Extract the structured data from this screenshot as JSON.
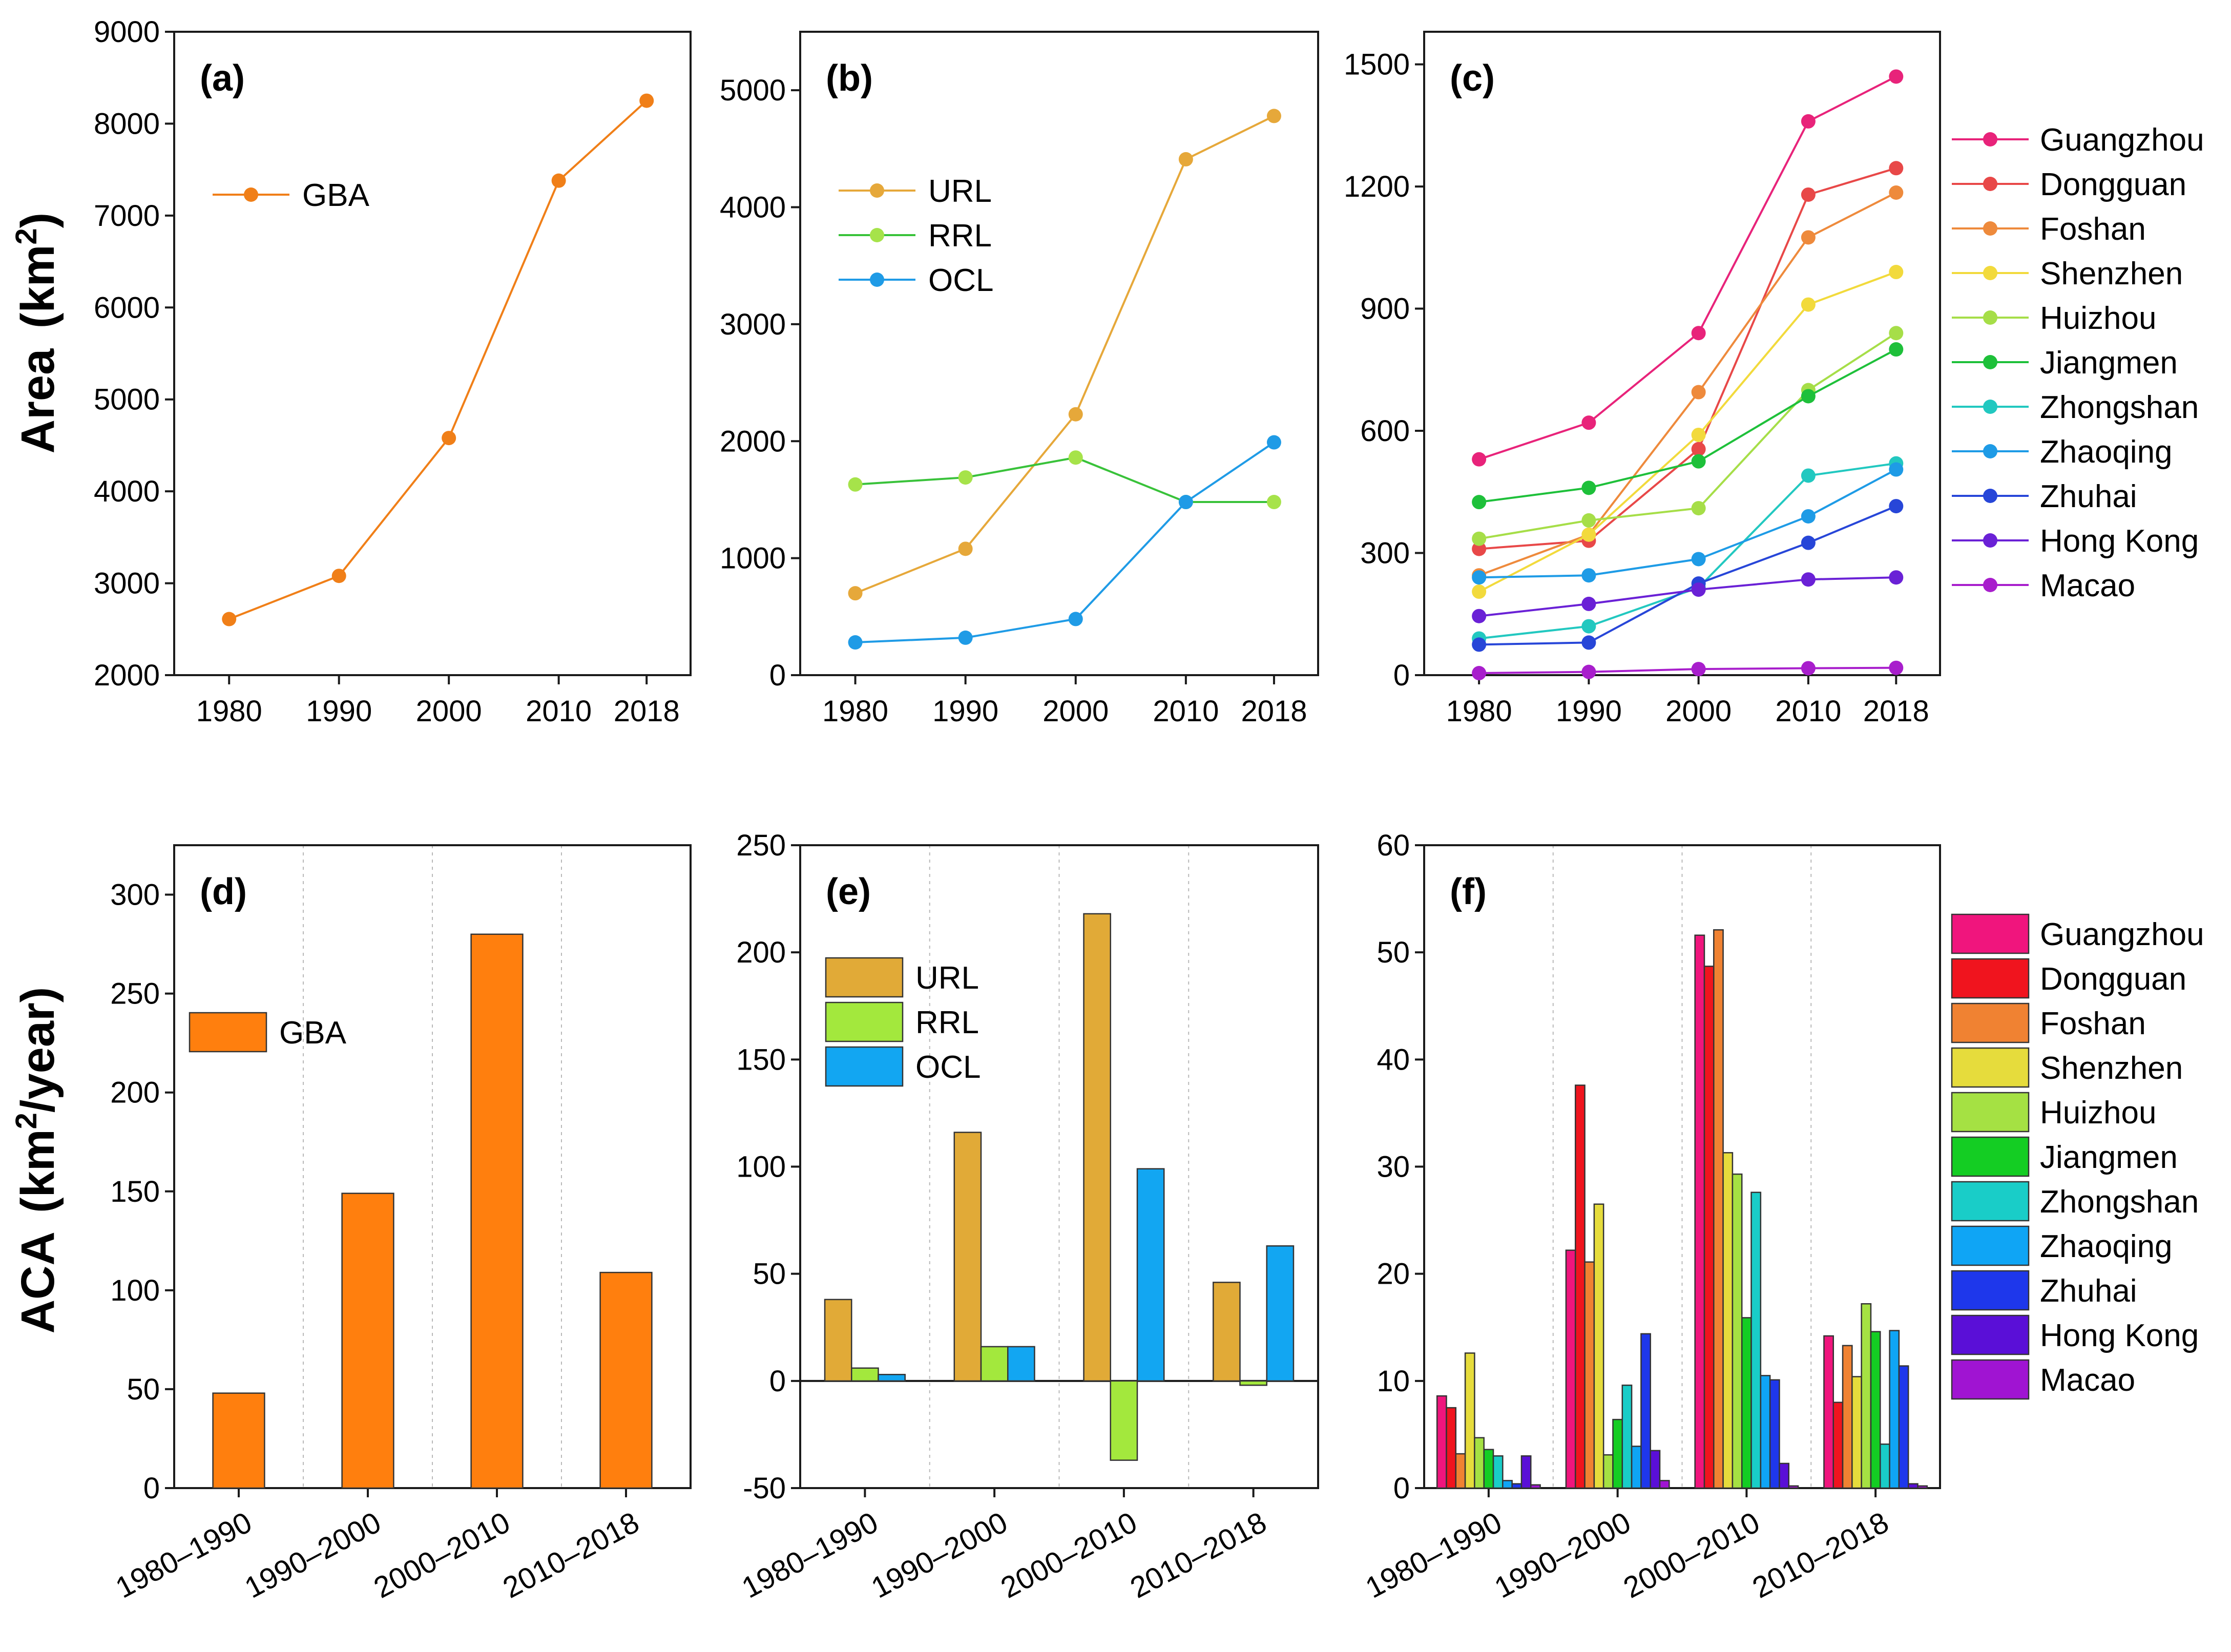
{
  "y_labels": {
    "top": {
      "main": "Area",
      "unit_open": "(km",
      "sup": "2",
      "unit_close": ")"
    },
    "bottom": {
      "main": "ACA",
      "unit_open": "(km",
      "sup": "2",
      "unit_close": "/year)"
    }
  },
  "chart_data": [
    {
      "id": "a",
      "panel_label": "(a)",
      "type": "line",
      "categories": [
        "1980",
        "1990",
        "2000",
        "2010",
        "2018"
      ],
      "x_positions": [
        1980,
        1990,
        2000,
        2010,
        2018
      ],
      "ylim": [
        2000,
        9000
      ],
      "yticks": [
        2000,
        3000,
        4000,
        5000,
        6000,
        7000,
        8000,
        9000
      ],
      "legend": {
        "placement": "upper-left"
      },
      "series": [
        {
          "name": "GBA",
          "color": "#F07F18",
          "values": [
            2610,
            3080,
            4580,
            7380,
            8250
          ]
        }
      ]
    },
    {
      "id": "b",
      "panel_label": "(b)",
      "type": "line",
      "categories": [
        "1980",
        "1990",
        "2000",
        "2010",
        "2018"
      ],
      "x_positions": [
        1980,
        1990,
        2000,
        2010,
        2018
      ],
      "ylim": [
        0,
        5500
      ],
      "yticks": [
        0,
        1000,
        2000,
        3000,
        4000,
        5000
      ],
      "legend": {
        "placement": "upper-left"
      },
      "series": [
        {
          "name": "URL",
          "color": "#E6A83A",
          "values": [
            700,
            1080,
            2230,
            4410,
            4780
          ]
        },
        {
          "name": "RRL",
          "color": "#39C23A",
          "marker_color": "#A6E34A",
          "values": [
            1630,
            1690,
            1860,
            1480,
            1480
          ]
        },
        {
          "name": "OCL",
          "color": "#1F9BE6",
          "values": [
            280,
            320,
            480,
            1480,
            1990
          ]
        }
      ]
    },
    {
      "id": "c",
      "panel_label": "(c)",
      "type": "line",
      "categories": [
        "1980",
        "1990",
        "2000",
        "2010",
        "2018"
      ],
      "x_positions": [
        1980,
        1990,
        2000,
        2010,
        2018
      ],
      "ylim": [
        0,
        1580
      ],
      "yticks": [
        0,
        300,
        600,
        900,
        1200,
        1500
      ],
      "legend": {
        "placement": "outside-right"
      },
      "series": [
        {
          "name": "Guangzhou",
          "color": "#E8237A",
          "values": [
            530,
            620,
            840,
            1360,
            1470
          ]
        },
        {
          "name": "Dongguan",
          "color": "#E84848",
          "values": [
            310,
            330,
            555,
            1180,
            1245
          ]
        },
        {
          "name": "Foshan",
          "color": "#EE8A3C",
          "values": [
            245,
            345,
            695,
            1075,
            1185
          ]
        },
        {
          "name": "Shenzhen",
          "color": "#F2DA3C",
          "values": [
            205,
            345,
            590,
            910,
            990
          ]
        },
        {
          "name": "Huizhou",
          "color": "#A6DE48",
          "values": [
            335,
            380,
            410,
            700,
            840
          ]
        },
        {
          "name": "Jiangmen",
          "color": "#1EC03A",
          "values": [
            425,
            460,
            525,
            685,
            800
          ]
        },
        {
          "name": "Zhongshan",
          "color": "#22C8C0",
          "values": [
            90,
            120,
            215,
            490,
            520
          ]
        },
        {
          "name": "Zhaoqing",
          "color": "#1E9BE6",
          "values": [
            240,
            245,
            285,
            390,
            505
          ]
        },
        {
          "name": "Zhuhai",
          "color": "#2746D8",
          "values": [
            75,
            80,
            225,
            325,
            415
          ]
        },
        {
          "name": "Hong Kong",
          "color": "#6A21D6",
          "values": [
            145,
            175,
            210,
            235,
            240
          ]
        },
        {
          "name": "Macao",
          "color": "#A81ECC",
          "values": [
            5,
            8,
            15,
            17,
            18
          ]
        }
      ]
    },
    {
      "id": "d",
      "panel_label": "(d)",
      "type": "bar",
      "categories": [
        "1980–1990",
        "1990–2000",
        "2000–2010",
        "2010–2018"
      ],
      "ylim": [
        0,
        325
      ],
      "yticks": [
        0,
        50,
        100,
        150,
        200,
        250,
        300
      ],
      "legend": {
        "placement": "upper-left"
      },
      "series": [
        {
          "name": "GBA",
          "color": "#FF7F0E",
          "values": [
            48,
            149,
            280,
            109
          ]
        }
      ]
    },
    {
      "id": "e",
      "panel_label": "(e)",
      "type": "bar",
      "categories": [
        "1980–1990",
        "1990–2000",
        "2000–2010",
        "2010–2018"
      ],
      "ylim": [
        -50,
        250
      ],
      "yticks": [
        -50,
        0,
        50,
        100,
        150,
        200,
        250
      ],
      "legend": {
        "placement": "upper-left"
      },
      "series": [
        {
          "name": "URL",
          "color": "#E1AA37",
          "values": [
            38,
            116,
            218,
            46
          ]
        },
        {
          "name": "RRL",
          "color": "#A3E83D",
          "values": [
            6,
            16,
            -37,
            -2
          ]
        },
        {
          "name": "OCL",
          "color": "#12A6F2",
          "values": [
            3,
            16,
            99,
            63
          ]
        }
      ]
    },
    {
      "id": "f",
      "panel_label": "(f)",
      "type": "bar",
      "categories": [
        "1980–1990",
        "1990–2000",
        "2000–2010",
        "2010–2018"
      ],
      "ylim": [
        0,
        60
      ],
      "yticks": [
        0,
        10,
        20,
        30,
        40,
        50,
        60
      ],
      "legend": {
        "placement": "outside-right"
      },
      "series": [
        {
          "name": "Guangzhou",
          "color": "#F0157D",
          "values": [
            8.6,
            22.2,
            51.6,
            14.2
          ]
        },
        {
          "name": "Dongguan",
          "color": "#F0141E",
          "values": [
            7.5,
            37.6,
            48.7,
            8.0
          ]
        },
        {
          "name": "Foshan",
          "color": "#F08232",
          "values": [
            3.2,
            21.1,
            52.1,
            13.3
          ]
        },
        {
          "name": "Shenzhen",
          "color": "#E6DC3C",
          "values": [
            12.6,
            26.5,
            31.3,
            10.4
          ]
        },
        {
          "name": "Huizhou",
          "color": "#A5E143",
          "values": [
            4.7,
            3.1,
            29.3,
            17.2
          ]
        },
        {
          "name": "Jiangmen",
          "color": "#14CD23",
          "values": [
            3.6,
            6.4,
            15.9,
            14.6
          ]
        },
        {
          "name": "Zhongshan",
          "color": "#19CDC8",
          "values": [
            3.0,
            9.6,
            27.6,
            4.1
          ]
        },
        {
          "name": "Zhaoqing",
          "color": "#0FA5F5",
          "values": [
            0.7,
            3.9,
            10.5,
            14.7
          ]
        },
        {
          "name": "Zhuhai",
          "color": "#1E37EB",
          "values": [
            0.4,
            14.4,
            10.1,
            11.4
          ]
        },
        {
          "name": "Hong Kong",
          "color": "#5A0FD7",
          "values": [
            3.0,
            3.5,
            2.3,
            0.4
          ]
        },
        {
          "name": "Macao",
          "color": "#A014D2",
          "values": [
            0.3,
            0.7,
            0.2,
            0.2
          ]
        }
      ]
    }
  ]
}
